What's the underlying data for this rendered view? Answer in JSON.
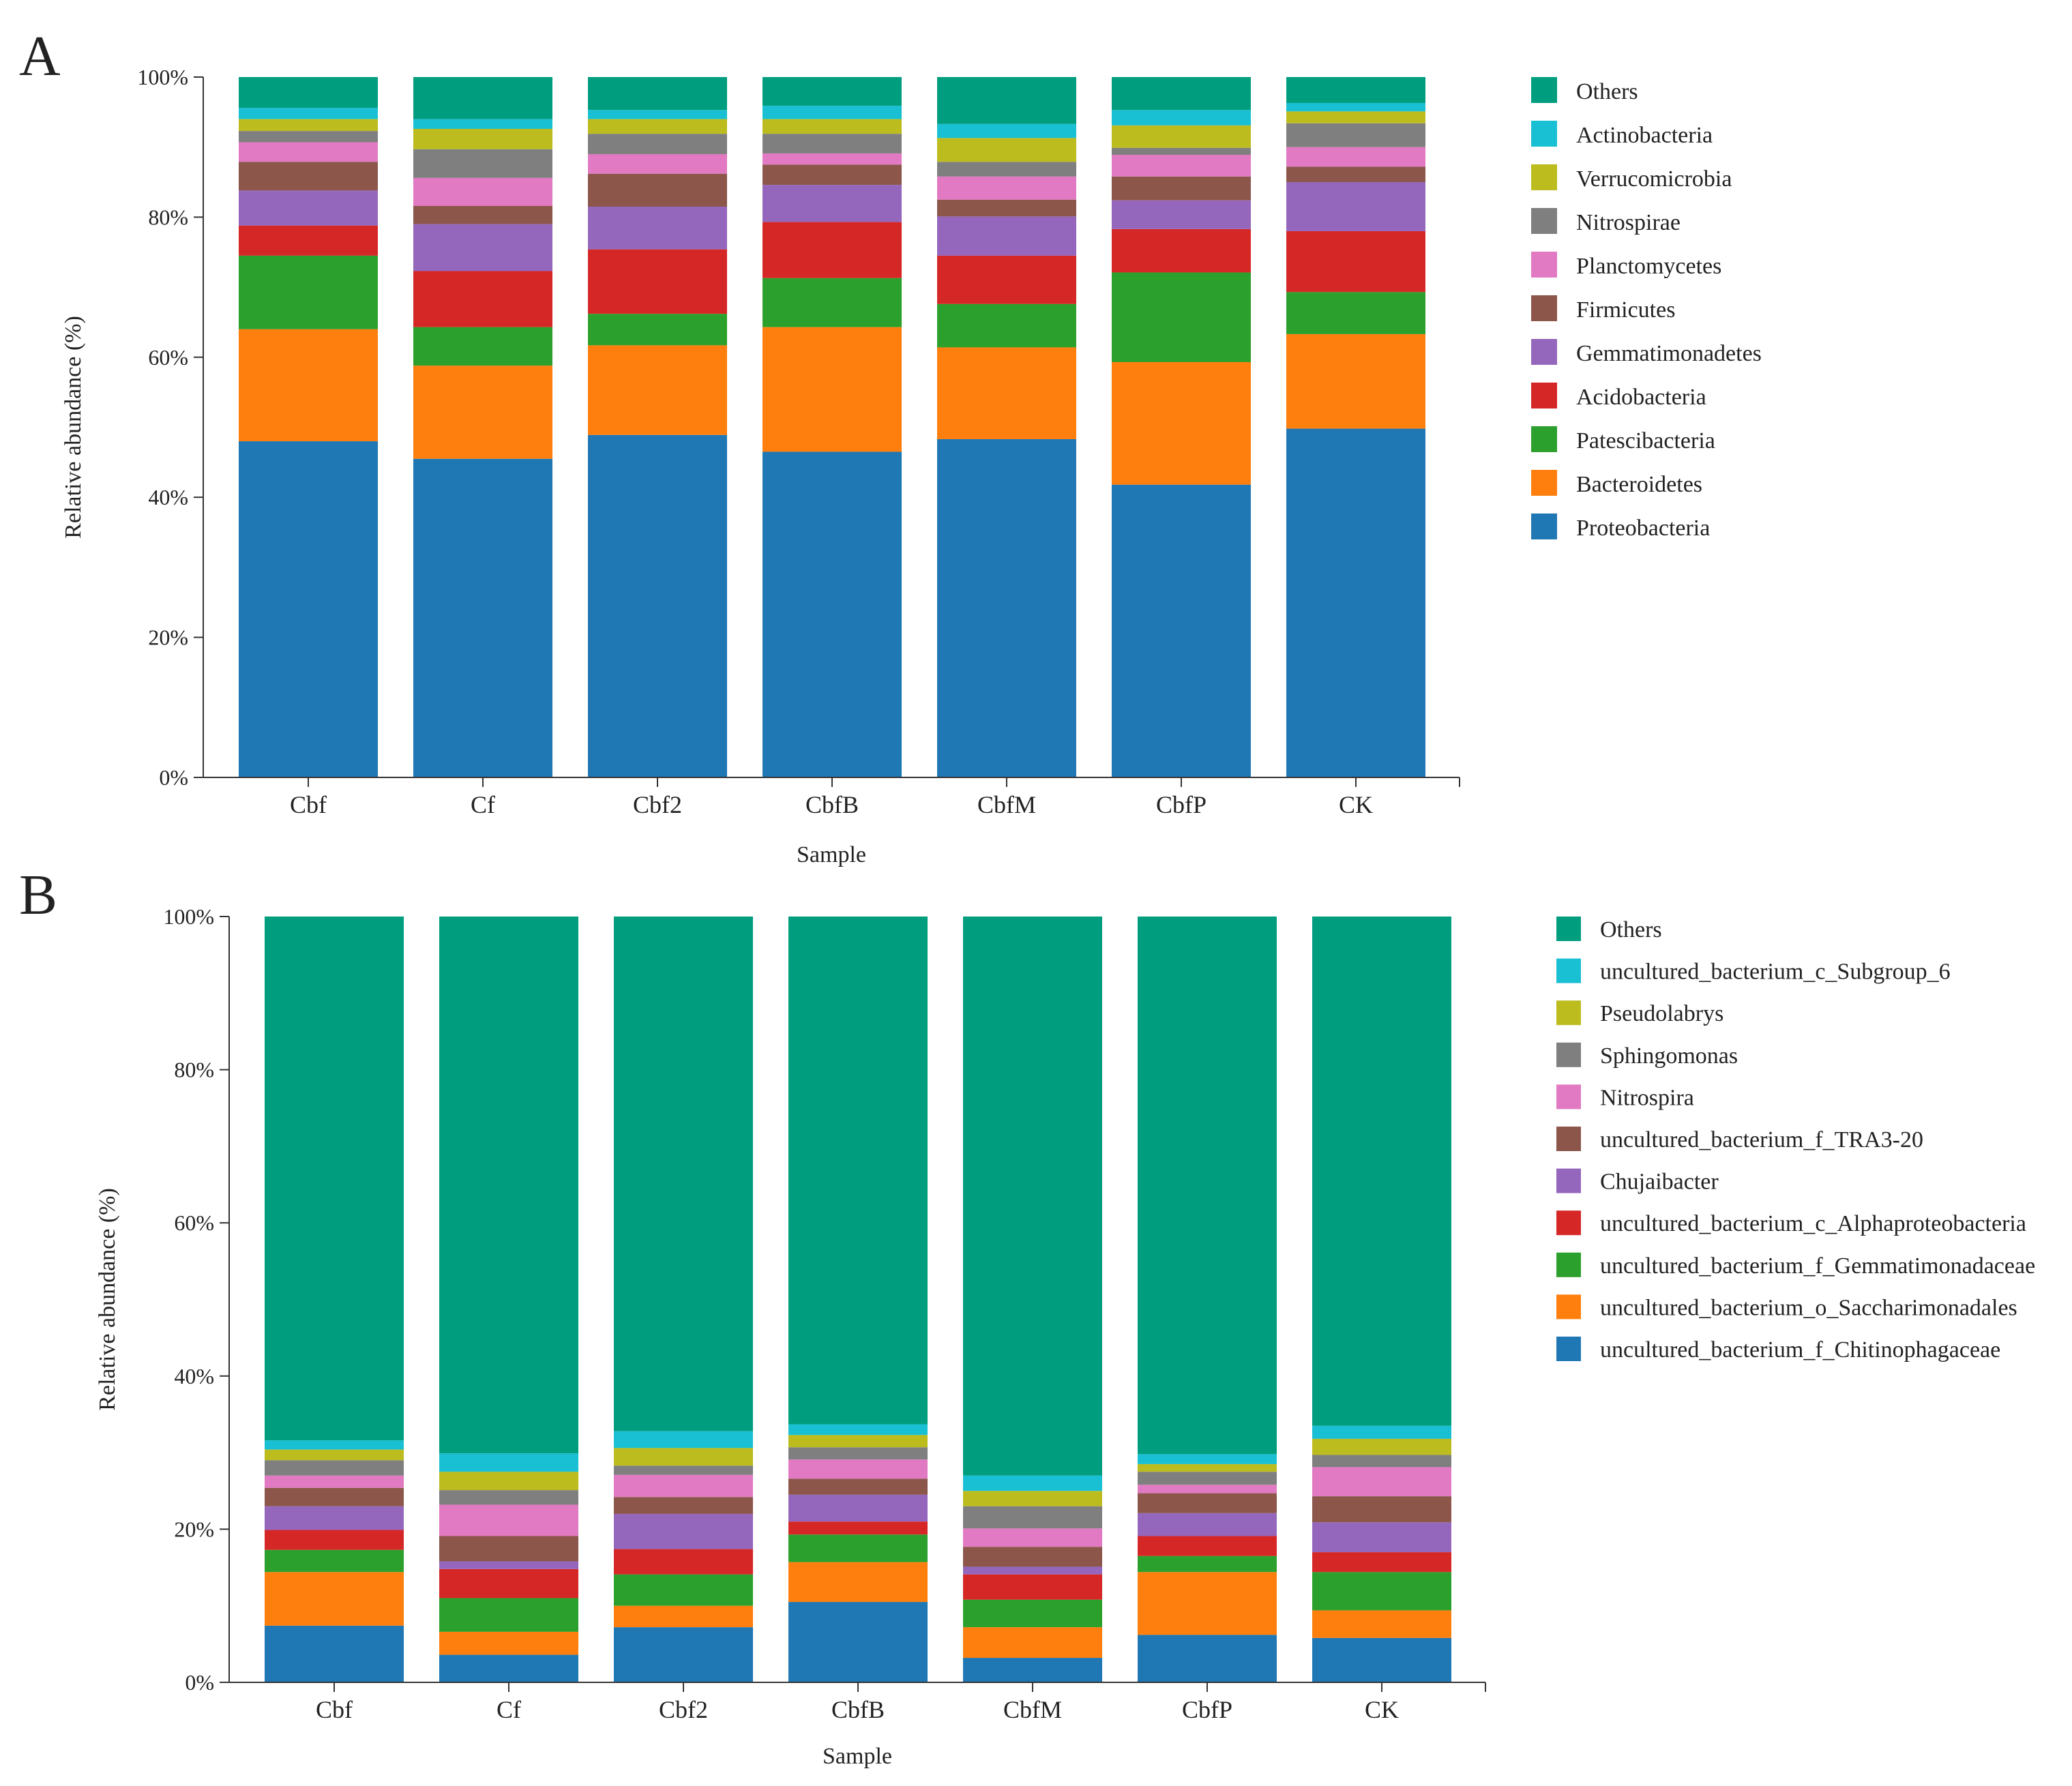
{
  "figure": {
    "panel_letters": [
      "A",
      "B"
    ]
  },
  "palette": {
    "Others": "#009e7f",
    "c6": "#19bfd2",
    "c5": "#bcbc1f",
    "c4": "#7f7f7f",
    "c3": "#e17ac2",
    "c2": "#8c564b",
    "c1b": "#9467bd",
    "c1": "#d62727",
    "c0b": "#2ca02c",
    "c0": "#ff7f0e",
    "base": "#1f77b4"
  },
  "chart_data": [
    {
      "type": "bar",
      "stacked": true,
      "panel": "A",
      "title": "",
      "xlabel": "Sample",
      "ylabel": "Relative abundance (%)",
      "ylim": [
        0,
        100
      ],
      "yticks": [
        "0%",
        "20%",
        "40%",
        "60%",
        "80%",
        "100%"
      ],
      "categories": [
        "Cbf",
        "Cf",
        "Cbf2",
        "CbfB",
        "CbfM",
        "CbfP",
        "CK"
      ],
      "legend_position": "right",
      "series": [
        {
          "name": "Proteobacteria",
          "color_key": "base",
          "values": [
            48.0,
            45.5,
            48.9,
            46.5,
            48.3,
            41.8,
            49.8
          ]
        },
        {
          "name": "Bacteroidetes",
          "color_key": "c0",
          "values": [
            16.0,
            13.3,
            12.8,
            17.8,
            13.1,
            17.5,
            13.5
          ]
        },
        {
          "name": "Patescibacteria",
          "color_key": "c0b",
          "values": [
            10.5,
            5.5,
            4.5,
            7.0,
            6.2,
            12.8,
            6.0
          ]
        },
        {
          "name": "Acidobacteria",
          "color_key": "c1",
          "values": [
            4.3,
            8.0,
            9.2,
            8.0,
            6.9,
            6.2,
            8.7
          ]
        },
        {
          "name": "Gemmatimonadetes",
          "color_key": "c1b",
          "values": [
            5.0,
            6.7,
            6.1,
            5.3,
            5.6,
            4.1,
            7.0
          ]
        },
        {
          "name": "Firmicutes",
          "color_key": "c2",
          "values": [
            4.1,
            2.6,
            4.7,
            2.9,
            2.4,
            3.4,
            2.2
          ]
        },
        {
          "name": "Planctomycetes",
          "color_key": "c3",
          "values": [
            2.8,
            4.0,
            2.8,
            1.6,
            3.3,
            3.1,
            2.8
          ]
        },
        {
          "name": "Nitrospirae",
          "color_key": "c4",
          "values": [
            1.6,
            4.1,
            2.9,
            2.8,
            2.1,
            1.0,
            3.4
          ]
        },
        {
          "name": "Verrucomicrobia",
          "color_key": "c5",
          "values": [
            1.7,
            2.9,
            2.1,
            2.1,
            3.4,
            3.2,
            1.7
          ]
        },
        {
          "name": "Actinobacteria",
          "color_key": "c6",
          "values": [
            1.6,
            1.4,
            1.3,
            1.9,
            2.0,
            2.2,
            1.2
          ]
        },
        {
          "name": "Others",
          "color_key": "Others",
          "values": [
            4.4,
            6.0,
            4.7,
            4.1,
            6.7,
            4.7,
            3.7
          ]
        }
      ]
    },
    {
      "type": "bar",
      "stacked": true,
      "panel": "B",
      "title": "",
      "xlabel": "Sample",
      "ylabel": "Relative abundance (%)",
      "ylim": [
        0,
        100
      ],
      "yticks": [
        "0%",
        "20%",
        "40%",
        "60%",
        "80%",
        "100%"
      ],
      "categories": [
        "Cbf",
        "Cf",
        "Cbf2",
        "CbfB",
        "CbfM",
        "CbfP",
        "CK"
      ],
      "legend_position": "right",
      "series": [
        {
          "name": "uncultured_bacterium_f_Chitinophagaceae",
          "color_key": "base",
          "values": [
            7.4,
            3.6,
            7.2,
            10.5,
            3.2,
            6.2,
            5.8
          ]
        },
        {
          "name": "uncultured_bacterium_o_Saccharimonadales",
          "color_key": "c0",
          "values": [
            7.0,
            3.0,
            2.8,
            5.2,
            4.0,
            8.2,
            3.6
          ]
        },
        {
          "name": "uncultured_bacterium_f_Gemmatimonadaceae",
          "color_key": "c0b",
          "values": [
            2.9,
            4.4,
            4.1,
            3.6,
            3.6,
            2.1,
            5.0
          ]
        },
        {
          "name": "uncultured_bacterium_c_Alphaproteobacteria",
          "color_key": "c1",
          "values": [
            2.6,
            3.8,
            3.3,
            1.7,
            3.3,
            2.6,
            2.6
          ]
        },
        {
          "name": "Chujaibacter",
          "color_key": "c1b",
          "values": [
            3.1,
            1.0,
            4.6,
            3.5,
            1.0,
            3.0,
            3.9
          ]
        },
        {
          "name": "uncultured_bacterium_f_TRA3-20",
          "color_key": "c2",
          "values": [
            2.4,
            3.3,
            2.2,
            2.1,
            2.6,
            2.6,
            3.4
          ]
        },
        {
          "name": "Nitrospira",
          "color_key": "c3",
          "values": [
            1.6,
            4.1,
            2.9,
            2.5,
            2.4,
            1.1,
            3.8
          ]
        },
        {
          "name": "Sphingomonas",
          "color_key": "c4",
          "values": [
            2.0,
            1.9,
            1.2,
            1.6,
            2.9,
            1.7,
            1.6
          ]
        },
        {
          "name": "Pseudolabrys",
          "color_key": "c5",
          "values": [
            1.4,
            2.4,
            2.3,
            1.6,
            2.0,
            1.0,
            2.1
          ]
        },
        {
          "name": "uncultured_bacterium_c_Subgroup_6",
          "color_key": "c6",
          "values": [
            1.2,
            2.4,
            2.2,
            1.4,
            2.0,
            1.3,
            1.7
          ]
        },
        {
          "name": "Others",
          "color_key": "Others",
          "values": [
            68.4,
            70.1,
            67.2,
            66.3,
            73.0,
            70.2,
            66.5
          ]
        }
      ]
    }
  ]
}
